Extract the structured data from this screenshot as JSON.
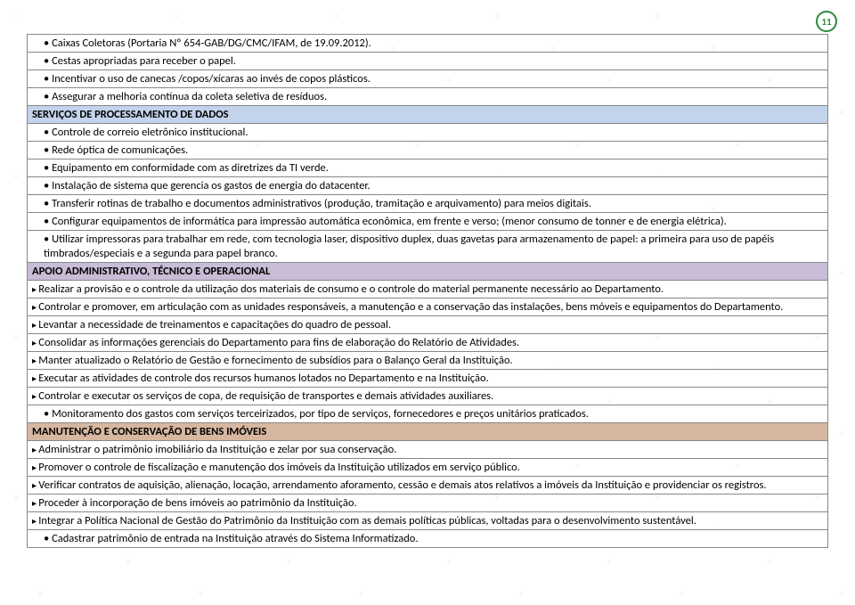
{
  "pageNumber": "11",
  "colors": {
    "servicosHeader": "#c2d3eb",
    "apoioHeader": "#c8bcd6",
    "manutHeader": "#d7b7a0",
    "border": "#888888",
    "pageNumRing": "#2c8a3c"
  },
  "rows": [
    {
      "style": "bullet",
      "indent": true,
      "text": "Caixas Coletoras (Portaria Nº 654-GAB/DG/CMC/IFAM, de 19.09.2012)."
    },
    {
      "style": "bullet",
      "indent": true,
      "text": "Cestas apropriadas para receber o papel."
    },
    {
      "style": "bullet",
      "indent": true,
      "text": "Incentivar o uso de canecas /copos/xícaras ao invés de copos plásticos."
    },
    {
      "style": "bullet",
      "indent": true,
      "text": "Assegurar a melhoria contínua da coleta seletiva de resíduos."
    },
    {
      "style": "header-servicos",
      "text": "SERVIÇOS DE PROCESSAMENTO DE DADOS"
    },
    {
      "style": "bullet",
      "indent": true,
      "text": "Controle de correio eletrônico institucional."
    },
    {
      "style": "bullet",
      "indent": true,
      "text": "Rede óptica de comunicações."
    },
    {
      "style": "bullet",
      "indent": true,
      "text": "Equipamento em conformidade com as diretrizes da TI verde."
    },
    {
      "style": "bullet",
      "indent": true,
      "text": "Instalação de sistema que gerencia os gastos de energia do datacenter."
    },
    {
      "style": "bullet",
      "indent": true,
      "text": "Transferir rotinas de trabalho e documentos administrativos (produção, tramitação e arquivamento) para meios digitais."
    },
    {
      "style": "bullet",
      "indent": true,
      "text": "Configurar equipamentos de informática para impressão automática econômica, em frente e verso; (menor consumo de tonner e de energia elétrica)."
    },
    {
      "style": "bullet",
      "indent": true,
      "text": "Utilizar impressoras para trabalhar em rede, com tecnologia laser, dispositivo duplex, duas gavetas para armazenamento de papel: a primeira para uso de papéis timbrados/especiais e a segunda para papel branco."
    },
    {
      "style": "header-apoio",
      "text": "APOIO ADMINISTRATIVO, TÉCNICO E OPERACIONAL"
    },
    {
      "style": "rarr",
      "text": "Realizar a provisão e o controle da utilização dos materiais de consumo e o controle do material permanente necessário ao Departamento."
    },
    {
      "style": "rarr",
      "text": "Controlar e promover, em articulação com as unidades responsáveis, a manutenção e a conservação das instalações, bens móveis e equipamentos do Departamento."
    },
    {
      "style": "rarr",
      "text": "Levantar a necessidade de treinamentos e capacitações do quadro de pessoal."
    },
    {
      "style": "rarr",
      "text": "Consolidar as informações gerenciais do Departamento para fins de elaboração do Relatório de Atividades."
    },
    {
      "style": "rarr",
      "text": "Manter atualizado o Relatório de Gestão e fornecimento de subsídios para o Balanço Geral da Instituição."
    },
    {
      "style": "rarr",
      "text": "Executar as atividades de controle dos recursos humanos lotados no Departamento e na Instituição."
    },
    {
      "style": "rarr",
      "text": "Controlar e executar os serviços de copa, de requisição de transportes e demais atividades auxiliares."
    },
    {
      "style": "bullet",
      "indent": true,
      "text": "Monitoramento dos gastos com serviços terceirizados, por tipo de serviços, fornecedores e preços unitários praticados."
    },
    {
      "style": "header-manut",
      "text": "MANUTENÇÃO E CONSERVAÇÃO DE BENS IMÓVEIS"
    },
    {
      "style": "rarr",
      "text": "Administrar o patrimônio imobiliário da Instituição e zelar por sua conservação."
    },
    {
      "style": "rarr",
      "text": "Promover o controle de fiscalização e manutenção dos imóveis da Instituição utilizados em serviço público."
    },
    {
      "style": "rarr",
      "text": "Verificar contratos de aquisição, alienação, locação, arrendamento aforamento, cessão e demais atos relativos a imóveis da Instituição e providenciar os registros."
    },
    {
      "style": "rarr",
      "text": "Proceder à incorporação de bens imóveis ao patrimônio da Instituição."
    },
    {
      "style": "rarr",
      "text": "Integrar a Política Nacional de Gestão do Patrimônio da Instituição com as demais políticas públicas, voltadas para o desenvolvimento sustentável."
    },
    {
      "style": "bullet",
      "indent": true,
      "text": "Cadastrar patrimônio de entrada na Instituição através do Sistema Informatizado."
    }
  ]
}
